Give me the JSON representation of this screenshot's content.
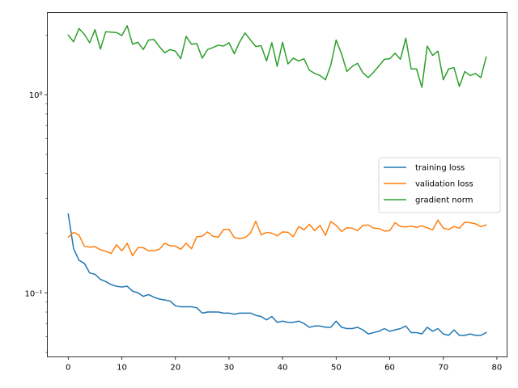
{
  "chart_data": {
    "type": "line",
    "title": "",
    "xlabel": "",
    "ylabel": "",
    "x_scale": "linear",
    "y_scale": "log",
    "xlim": [
      -3.9,
      81.9
    ],
    "ylim": [
      0.0475,
      2.6
    ],
    "x_ticks": [
      0,
      10,
      20,
      30,
      40,
      50,
      60,
      70,
      80
    ],
    "x_tick_labels": [
      "0",
      "10",
      "20",
      "30",
      "40",
      "50",
      "60",
      "70",
      "80"
    ],
    "y_ticks": [
      0.1,
      1
    ],
    "y_tick_labels": [
      "10⁻¹",
      "10⁰"
    ],
    "grid": false,
    "legend_position": "center-right",
    "x": [
      0,
      1,
      2,
      3,
      4,
      5,
      6,
      7,
      8,
      9,
      10,
      11,
      12,
      13,
      14,
      15,
      16,
      17,
      18,
      19,
      20,
      21,
      22,
      23,
      24,
      25,
      26,
      27,
      28,
      29,
      30,
      31,
      32,
      33,
      34,
      35,
      36,
      37,
      38,
      39,
      40,
      41,
      42,
      43,
      44,
      45,
      46,
      47,
      48,
      49,
      50,
      51,
      52,
      53,
      54,
      55,
      56,
      57,
      58,
      59,
      60,
      61,
      62,
      63,
      64,
      65,
      66,
      67,
      68,
      69,
      70,
      71,
      72,
      73,
      74,
      75,
      76,
      77,
      78
    ],
    "series": [
      {
        "name": "training loss",
        "color": "#1f77b4",
        "values": [
          0.25,
          0.167,
          0.146,
          0.141,
          0.126,
          0.124,
          0.117,
          0.114,
          0.11,
          0.108,
          0.107,
          0.108,
          0.102,
          0.1,
          0.096,
          0.098,
          0.095,
          0.093,
          0.092,
          0.091,
          0.086,
          0.085,
          0.085,
          0.085,
          0.084,
          0.079,
          0.08,
          0.08,
          0.08,
          0.079,
          0.079,
          0.078,
          0.079,
          0.079,
          0.079,
          0.077,
          0.076,
          0.073,
          0.076,
          0.071,
          0.072,
          0.071,
          0.071,
          0.072,
          0.07,
          0.067,
          0.068,
          0.068,
          0.067,
          0.067,
          0.072,
          0.067,
          0.066,
          0.066,
          0.067,
          0.065,
          0.062,
          0.063,
          0.064,
          0.066,
          0.064,
          0.065,
          0.066,
          0.068,
          0.063,
          0.063,
          0.062,
          0.067,
          0.064,
          0.066,
          0.062,
          0.061,
          0.065,
          0.061,
          0.061,
          0.062,
          0.061,
          0.061,
          0.063
        ]
      },
      {
        "name": "validation loss",
        "color": "#ff7f0e",
        "values": [
          0.191,
          0.202,
          0.196,
          0.172,
          0.17,
          0.171,
          0.165,
          0.162,
          0.158,
          0.175,
          0.163,
          0.178,
          0.154,
          0.169,
          0.169,
          0.163,
          0.163,
          0.166,
          0.178,
          0.173,
          0.172,
          0.166,
          0.178,
          0.167,
          0.192,
          0.193,
          0.203,
          0.193,
          0.191,
          0.209,
          0.209,
          0.19,
          0.188,
          0.19,
          0.2,
          0.23,
          0.196,
          0.202,
          0.2,
          0.194,
          0.203,
          0.202,
          0.192,
          0.216,
          0.208,
          0.222,
          0.206,
          0.219,
          0.195,
          0.229,
          0.219,
          0.204,
          0.213,
          0.212,
          0.206,
          0.219,
          0.22,
          0.212,
          0.211,
          0.205,
          0.206,
          0.226,
          0.216,
          0.215,
          0.217,
          0.214,
          0.218,
          0.213,
          0.208,
          0.233,
          0.212,
          0.209,
          0.216,
          0.212,
          0.227,
          0.226,
          0.223,
          0.216,
          0.22
        ]
      },
      {
        "name": "gradient norm",
        "color": "#2ca02c",
        "values": [
          2.0,
          1.85,
          2.16,
          2.02,
          1.83,
          2.13,
          1.7,
          2.08,
          2.07,
          2.06,
          1.99,
          2.23,
          1.8,
          1.84,
          1.69,
          1.89,
          1.9,
          1.75,
          1.63,
          1.69,
          1.66,
          1.52,
          1.97,
          1.8,
          1.81,
          1.53,
          1.69,
          1.73,
          1.78,
          1.76,
          1.83,
          1.61,
          1.85,
          2.05,
          1.89,
          1.75,
          1.77,
          1.48,
          1.83,
          1.39,
          1.84,
          1.43,
          1.53,
          1.48,
          1.52,
          1.33,
          1.28,
          1.25,
          1.19,
          1.41,
          1.89,
          1.61,
          1.31,
          1.39,
          1.44,
          1.29,
          1.22,
          1.3,
          1.4,
          1.51,
          1.52,
          1.62,
          1.51,
          1.93,
          1.35,
          1.35,
          1.09,
          1.76,
          1.58,
          1.66,
          1.19,
          1.35,
          1.37,
          1.1,
          1.31,
          1.25,
          1.28,
          1.22,
          1.55
        ]
      }
    ]
  }
}
